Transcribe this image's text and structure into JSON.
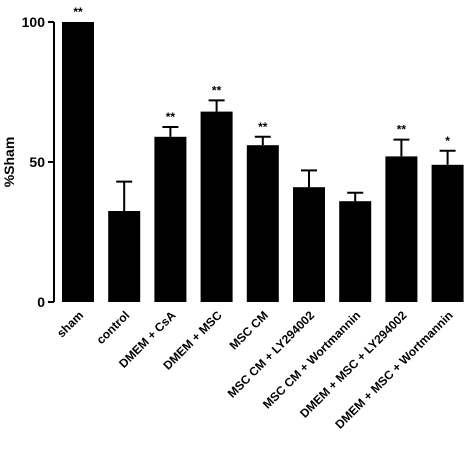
{
  "chart_data": {
    "type": "bar",
    "ylabel": "%Sham",
    "categories": [
      "sham",
      "control",
      "DMEM + CsA",
      "DMEM + MSC",
      "MSC CM",
      "MSC CM + LY294002",
      "MSC CM + Wortmannin",
      "DMEM + MSC + LY294002",
      "DMEM + MSC + Wortmannin"
    ],
    "values": [
      100,
      32.5,
      59,
      68,
      56,
      41,
      36,
      52,
      49
    ],
    "errors": [
      0,
      10.5,
      3.5,
      4,
      3,
      6,
      3,
      6,
      5
    ],
    "annotations": [
      "**",
      null,
      "**",
      "**",
      "**",
      null,
      null,
      "**",
      "*"
    ],
    "color": "#000000",
    "ylim": [
      0,
      100
    ],
    "yticks": [
      0,
      50,
      100
    ]
  }
}
